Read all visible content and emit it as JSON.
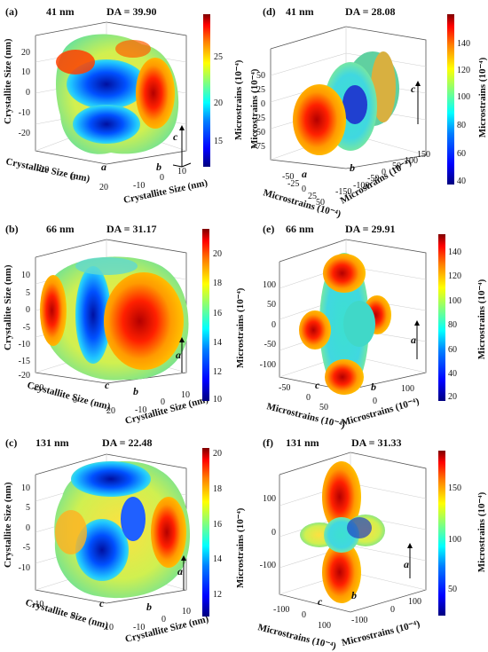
{
  "panels": [
    {
      "id": "a",
      "label": "(a)",
      "size": "41 nm",
      "da": "DA = 39.90",
      "zlabel": "Crystallite Size (nm)",
      "xlabel": "Crystallite Size (nm)",
      "ylabel": "Crystallite Size (nm)",
      "zticks": [
        "20",
        "10",
        "0",
        "-10",
        "-20"
      ],
      "xticks": [
        "-20",
        "0",
        "20"
      ],
      "yticks": [
        "-10",
        "0",
        "10"
      ],
      "axis_a": "a",
      "axis_b": "b",
      "axis_c": "c",
      "colorbar": {
        "ticks": [
          "25",
          "20",
          "15"
        ],
        "label": ""
      }
    },
    {
      "id": "d",
      "label": "(d)",
      "size": "41 nm",
      "da": "DA = 28.08",
      "zlabel": "Microstrains (10⁻⁴)",
      "xlabel": "Microstrains (10⁻⁴)",
      "ylabel": "Microstrains (10⁻⁴)",
      "zticks": [
        "50",
        "25",
        "0",
        "-25",
        "-50",
        "-75"
      ],
      "xticks": [
        "-50",
        "-25",
        "0",
        "25",
        "50"
      ],
      "yticks": [
        "-150",
        "-100",
        "-50",
        "0",
        "50",
        "100",
        "150"
      ],
      "axis_a": "a",
      "axis_b": "b",
      "axis_c": "c",
      "colorbar": {
        "ticks": [
          "140",
          "120",
          "100",
          "80",
          "60",
          "40"
        ],
        "label": "Microstrains (10⁻⁴)"
      }
    },
    {
      "id": "b",
      "label": "(b)",
      "size": "66 nm",
      "da": "DA = 31.17",
      "zlabel": "Crystallite Size (nm)",
      "xlabel": "Crystallite Size (nm)",
      "ylabel": "Crystallite Size (nm)",
      "zticks": [
        "10",
        "5",
        "0",
        "-5",
        "-10",
        "-15",
        "-20"
      ],
      "xticks": [
        "-20",
        "0",
        "20"
      ],
      "yticks": [
        "-10",
        "0",
        "10"
      ],
      "axis_a": "a",
      "axis_b": "b",
      "axis_c": "c",
      "colorbar": {
        "ticks": [
          "20",
          "18",
          "16",
          "14",
          "12",
          "10"
        ],
        "label": ""
      }
    },
    {
      "id": "e",
      "label": "(e)",
      "size": "66 nm",
      "da": "DA = 29.91",
      "zlabel": "Microstrains (10⁻⁴)",
      "xlabel": "Microstrains (10⁻⁴)",
      "ylabel": "Microstrains (10⁻⁴)",
      "zticks": [
        "100",
        "50",
        "0",
        "-50",
        "-100"
      ],
      "xticks": [
        "-50",
        "0",
        "50"
      ],
      "yticks": [
        "0",
        "100"
      ],
      "axis_a": "a",
      "axis_b": "b",
      "axis_c": "c",
      "colorbar": {
        "ticks": [
          "140",
          "120",
          "100",
          "80",
          "60",
          "40",
          "20"
        ],
        "label": "Microstrains (10⁻⁴)"
      }
    },
    {
      "id": "c",
      "label": "(c)",
      "size": "131 nm",
      "da": "DA = 22.48",
      "zlabel": "Crystallite Size (nm)",
      "xlabel": "Crystallite Size (nm)",
      "ylabel": "Crystallite Size (nm)",
      "zticks": [
        "10",
        "5",
        "0",
        "-5",
        "-10"
      ],
      "xticks": [
        "-10",
        "0",
        "10"
      ],
      "yticks": [
        "-10",
        "0",
        "10"
      ],
      "axis_a": "a",
      "axis_b": "b",
      "axis_c": "c",
      "colorbar": {
        "ticks": [
          "20",
          "18",
          "16",
          "14",
          "12"
        ],
        "label": ""
      }
    },
    {
      "id": "f",
      "label": "(f)",
      "size": "131 nm",
      "da": "DA = 31.33",
      "zlabel": "Microstrains (10⁻⁴)",
      "xlabel": "Microstrains (10⁻⁴)",
      "ylabel": "Microstrains (10⁻⁴)",
      "zticks": [
        "100",
        "0",
        "-100"
      ],
      "xticks": [
        "-100",
        "0",
        "100"
      ],
      "yticks": [
        "-100",
        "0",
        "100"
      ],
      "axis_a": "a",
      "axis_b": "b",
      "axis_c": "c",
      "colorbar": {
        "ticks": [
          "150",
          "100",
          "50"
        ],
        "label": "Microstrains (10⁻⁴)"
      }
    }
  ],
  "colors": {
    "jet": [
      "#00007f",
      "#0000ff",
      "#007fff",
      "#00ffff",
      "#7fff7f",
      "#ffff00",
      "#ff7f00",
      "#ff0000",
      "#7f0000"
    ]
  }
}
